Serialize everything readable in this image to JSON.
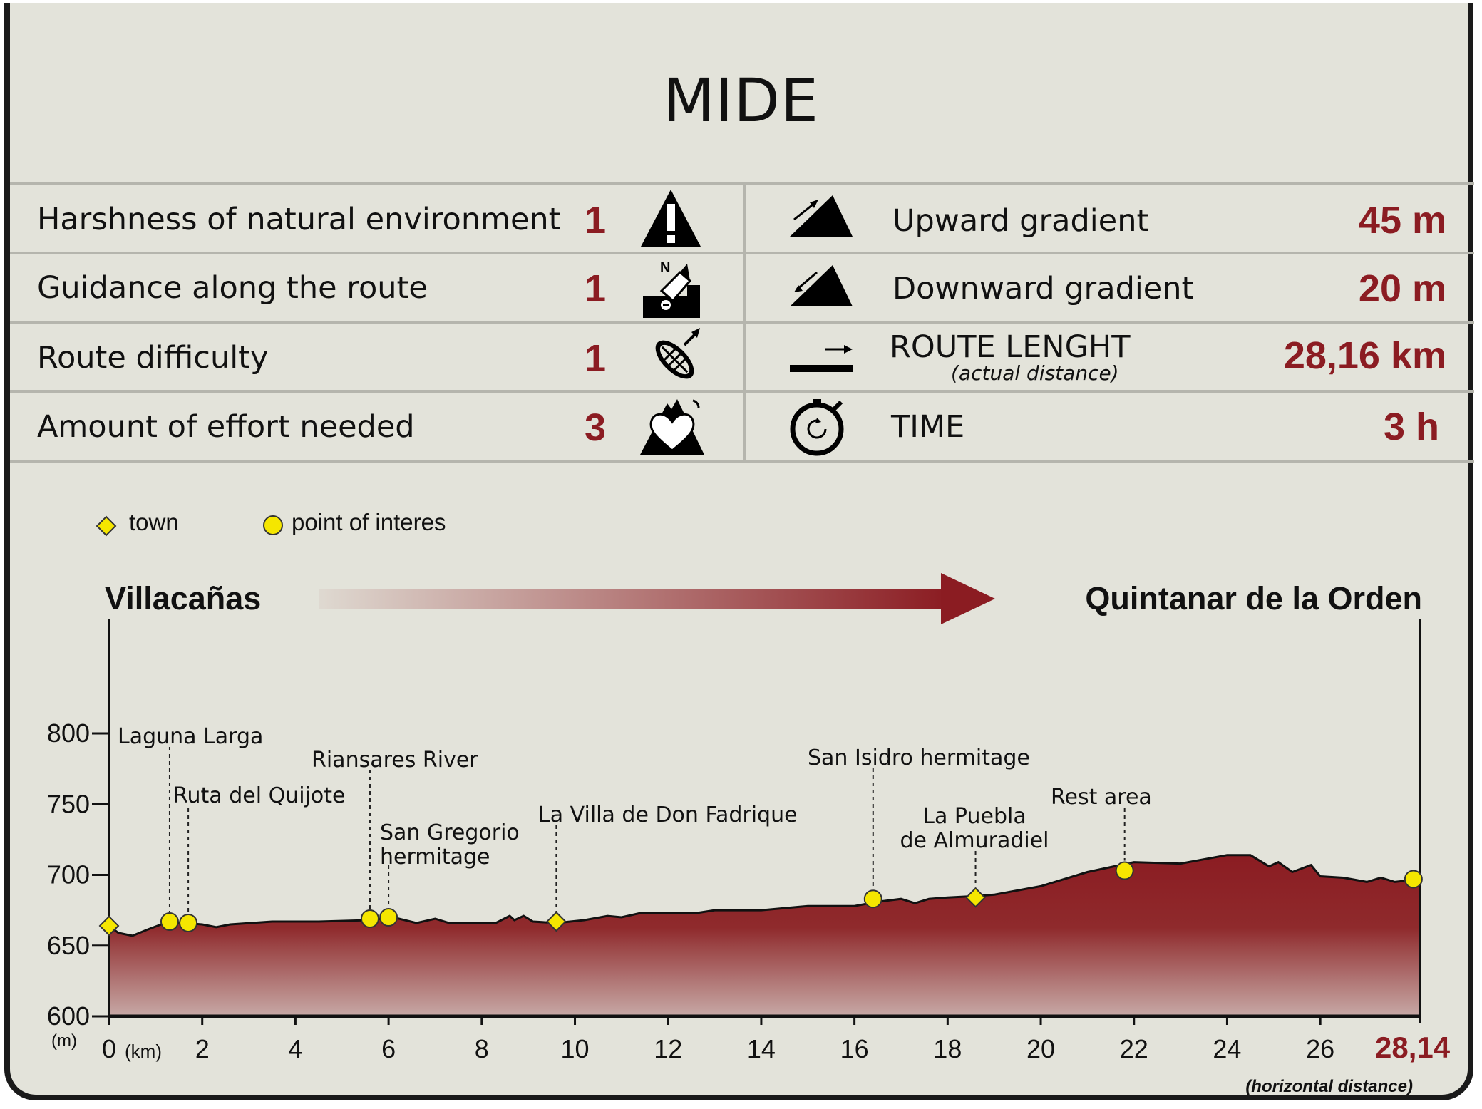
{
  "title": "MIDE",
  "mide_rows": [
    {
      "label": "Harshness of natural environment",
      "value": "1",
      "icon": "warning-icon"
    },
    {
      "label": "Guidance along the route",
      "value": "1",
      "icon": "compass-map-icon"
    },
    {
      "label": "Route difficulty",
      "value": "1",
      "icon": "footprint-icon"
    },
    {
      "label": "Amount of effort needed",
      "value": "3",
      "icon": "heart-mountain-icon"
    }
  ],
  "stats": {
    "upward": {
      "label": "Upward gradient",
      "value": "45 m",
      "icon": "upward-slope-icon"
    },
    "downward": {
      "label": "Downward gradient",
      "value": "20 m",
      "icon": "downward-slope-icon"
    },
    "length": {
      "label": "ROUTE LENGHT",
      "sublabel": "(actual distance)",
      "value": "28,16 km",
      "icon": "distance-arrow-icon"
    },
    "time": {
      "label": "TIME",
      "value": "3 h",
      "icon": "stopwatch-icon"
    }
  },
  "legend": {
    "town": "town",
    "poi": "point of interes"
  },
  "route": {
    "start": "Villacañas",
    "end": "Quintanar de la Orden"
  },
  "colors": {
    "accent": "#8b1c22",
    "marker": "#f5e600",
    "panel": "#e3e3da"
  },
  "chart_data": {
    "type": "area",
    "x_unit": "(km)",
    "y_unit": "(m)",
    "xlim": [
      0,
      28.14
    ],
    "ylim": [
      600,
      800
    ],
    "x_ticks": [
      "0",
      "2",
      "4",
      "6",
      "8",
      "10",
      "12",
      "14",
      "16",
      "18",
      "20",
      "22",
      "24",
      "26"
    ],
    "y_ticks": [
      "600",
      "650",
      "700",
      "750",
      "800"
    ],
    "x_end_label": "28,14",
    "x_note": "(horizontal distance)",
    "profile": {
      "x": [
        0,
        0.2,
        0.5,
        0.8,
        1.2,
        1.6,
        2.0,
        2.3,
        2.6,
        3.5,
        4.5,
        5.6,
        6.1,
        6.6,
        7.0,
        7.3,
        8.0,
        8.3,
        8.6,
        8.7,
        8.9,
        9.1,
        9.6,
        10.2,
        10.7,
        11.0,
        11.4,
        12.0,
        12.6,
        13.0,
        14.0,
        15.0,
        16.0,
        16.5,
        17.0,
        17.3,
        17.6,
        18.0,
        18.6,
        19.0,
        20.0,
        21.0,
        22.0,
        23.0,
        24.0,
        24.5,
        24.9,
        25.1,
        25.4,
        25.8,
        26.0,
        26.5,
        27.0,
        27.3,
        27.6,
        28.14
      ],
      "elev": [
        664,
        659,
        657,
        661,
        666,
        666,
        665,
        663,
        665,
        667,
        667,
        668,
        670,
        666,
        669,
        666,
        666,
        666,
        671,
        668,
        671,
        667,
        666,
        668,
        671,
        670,
        673,
        673,
        673,
        675,
        675,
        678,
        678,
        681,
        683,
        680,
        683,
        684,
        685,
        686,
        692,
        702,
        709,
        708,
        714,
        714,
        706,
        709,
        702,
        707,
        699,
        698,
        695,
        698,
        695,
        697
      ]
    },
    "points": [
      {
        "km": 0,
        "elev": 664,
        "kind": "town",
        "label": ""
      },
      {
        "km": 1.3,
        "elev": 667,
        "kind": "poi",
        "label": "Laguna Larga"
      },
      {
        "km": 1.7,
        "elev": 666,
        "kind": "poi",
        "label": "Ruta del Quijote"
      },
      {
        "km": 5.6,
        "elev": 669,
        "kind": "poi",
        "label": "Riansares River"
      },
      {
        "km": 6.0,
        "elev": 670,
        "kind": "poi",
        "label": "San Gregorio hermitage"
      },
      {
        "km": 9.6,
        "elev": 667,
        "kind": "town",
        "label": "La Villa de Don Fadrique"
      },
      {
        "km": 16.4,
        "elev": 683,
        "kind": "poi",
        "label": "San Isidro hermitage"
      },
      {
        "km": 18.6,
        "elev": 684,
        "kind": "town",
        "label": "La Puebla de Almuradiel"
      },
      {
        "km": 21.8,
        "elev": 703,
        "kind": "poi",
        "label": "Rest area"
      },
      {
        "km": 28.0,
        "elev": 697,
        "kind": "poi",
        "label": ""
      }
    ]
  }
}
